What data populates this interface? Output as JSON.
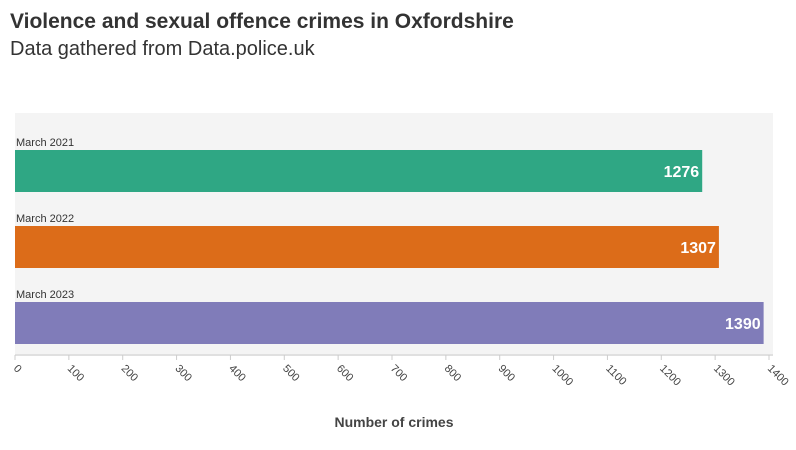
{
  "header": {
    "title": "Violence and sexual offence crimes in Oxfordshire",
    "subtitle": "Data gathered from Data.police.uk"
  },
  "chart_data": {
    "type": "bar",
    "orientation": "horizontal",
    "categories": [
      "March 2021",
      "March 2022",
      "March 2023"
    ],
    "values": [
      1276,
      1307,
      1390
    ],
    "data_labels": [
      "1276",
      "1307",
      "1390"
    ],
    "colors": [
      "#2fa784",
      "#dc6c19",
      "#807cb9"
    ],
    "xlabel": "Number of crimes",
    "ylabel": "",
    "xlim": [
      0,
      1400
    ],
    "xticks": [
      "0",
      "100",
      "200",
      "300",
      "400",
      "500",
      "600",
      "700",
      "800",
      "900",
      "1000",
      "1100",
      "1200",
      "1300",
      "1400"
    ],
    "plot_background": "#f4f4f4",
    "grid": false,
    "legend": "none"
  }
}
